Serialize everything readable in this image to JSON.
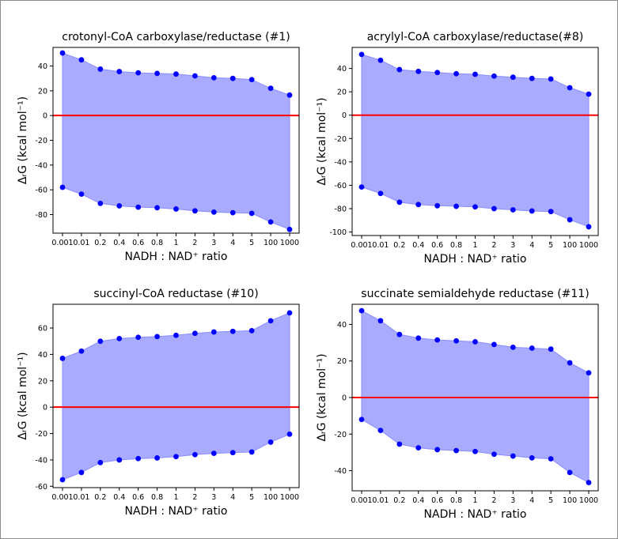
{
  "figure": {
    "colors": {
      "band_fill": "#a9abff",
      "band_edge": "#8a8dff",
      "points": "#0000ff",
      "zero_line": "#ff0000",
      "axis": "#000000"
    },
    "xlabel": "NADH : NAD⁺ ratio",
    "ylabel": "ΔᵣG (kcal mol⁻¹)"
  },
  "chart_data": [
    {
      "type": "area",
      "title": "crotonyl-CoA carboxylase/reductase (#1)",
      "xlabel": "NADH : NAD⁺ ratio",
      "ylabel": "ΔᵣG (kcal mol⁻¹)",
      "categories": [
        "0.001",
        "0.01",
        "0.2",
        "0.4",
        "0.6",
        "0.8",
        "1",
        "2",
        "3",
        "4",
        "5",
        "100",
        "1000"
      ],
      "series": [
        {
          "values": [
            50.5,
            45,
            37.5,
            35.5,
            34.5,
            34,
            33.5,
            32,
            30.5,
            30,
            29,
            22,
            16.5
          ]
        },
        {
          "values": [
            -58,
            -63.5,
            -71,
            -73,
            -74,
            -74.5,
            -75.5,
            -77,
            -78,
            -78.5,
            -79,
            -86,
            -92
          ]
        }
      ],
      "ylim": [
        -95,
        55
      ],
      "yticks": [
        40,
        20,
        0,
        -20,
        -40,
        -60,
        -80
      ],
      "ytick_labels": [
        "40",
        "20",
        "0",
        "-20",
        "-40",
        "-60",
        "-80"
      ],
      "zero_line": 0,
      "grid": false
    },
    {
      "type": "area",
      "title": "acrylyl-CoA carboxylase/reductase(#8)",
      "xlabel": "NADH : NAD⁺ ratio",
      "ylabel": "ΔᵣG (kcal mol⁻¹)",
      "categories": [
        "0.001",
        "0.01",
        "0.2",
        "0.4",
        "0.6",
        "0.8",
        "1",
        "2",
        "3",
        "4",
        "5",
        "100",
        "1000"
      ],
      "series": [
        {
          "values": [
            52,
            47,
            39,
            37.5,
            36.5,
            35.5,
            35,
            33.5,
            32.5,
            31.5,
            31,
            23.5,
            18
          ]
        },
        {
          "values": [
            -61.5,
            -67,
            -74.5,
            -76.5,
            -77.5,
            -78,
            -78.5,
            -80,
            -81,
            -82,
            -82.5,
            -89.5,
            -95.5
          ]
        }
      ],
      "ylim": [
        -103,
        58
      ],
      "yticks": [
        40,
        20,
        0,
        -20,
        -40,
        -60,
        -80,
        -100
      ],
      "ytick_labels": [
        "40",
        "20",
        "0",
        "-20",
        "-40",
        "-60",
        "-80",
        "-100"
      ],
      "zero_line": 0,
      "grid": false
    },
    {
      "type": "area",
      "title": "succinyl-CoA reductase (#10)",
      "xlabel": "NADH : NAD⁺ ratio",
      "ylabel": "ΔᵣG (kcal mol⁻¹)",
      "categories": [
        "0.001",
        "0.01",
        "0.2",
        "0.4",
        "0.6",
        "0.8",
        "1",
        "2",
        "3",
        "4",
        "5",
        "100",
        "1000"
      ],
      "series": [
        {
          "values": [
            37,
            42.5,
            50,
            52,
            53,
            53.5,
            54.5,
            56,
            57,
            57.5,
            58,
            65.5,
            71.5
          ]
        },
        {
          "values": [
            -55,
            -49.5,
            -42,
            -40,
            -39,
            -38.5,
            -37.5,
            -36,
            -35,
            -34.5,
            -34,
            -26.5,
            -20.5
          ]
        }
      ],
      "ylim": [
        -61,
        78
      ],
      "yticks": [
        60,
        40,
        20,
        0,
        -20,
        -40,
        -60
      ],
      "ytick_labels": [
        "60",
        "40",
        "20",
        "0",
        "-20",
        "-40",
        "-60"
      ],
      "zero_line": 0,
      "grid": false
    },
    {
      "type": "area",
      "title": "succinate semialdehyde reductase (#11)",
      "xlabel": "NADH : NAD⁺ ratio",
      "ylabel": "ΔᵣG (kcal mol⁻¹)",
      "categories": [
        "0.001",
        "0.01",
        "0.2",
        "0.4",
        "0.6",
        "0.8",
        "1",
        "2",
        "3",
        "4",
        "5",
        "100",
        "1000"
      ],
      "series": [
        {
          "values": [
            47.5,
            42,
            34.5,
            32.5,
            31.5,
            31,
            30.5,
            29,
            27.5,
            27,
            26.5,
            19,
            13.5
          ]
        },
        {
          "values": [
            -12,
            -18,
            -25.5,
            -27.5,
            -28.5,
            -29,
            -29.5,
            -31,
            -32,
            -33,
            -33.5,
            -41,
            -46.5
          ]
        }
      ],
      "ylim": [
        -51,
        51
      ],
      "yticks": [
        40,
        20,
        0,
        -20,
        -40
      ],
      "ytick_labels": [
        "40",
        "20",
        "0",
        "-20",
        "-40"
      ],
      "zero_line": 0,
      "grid": false
    }
  ]
}
